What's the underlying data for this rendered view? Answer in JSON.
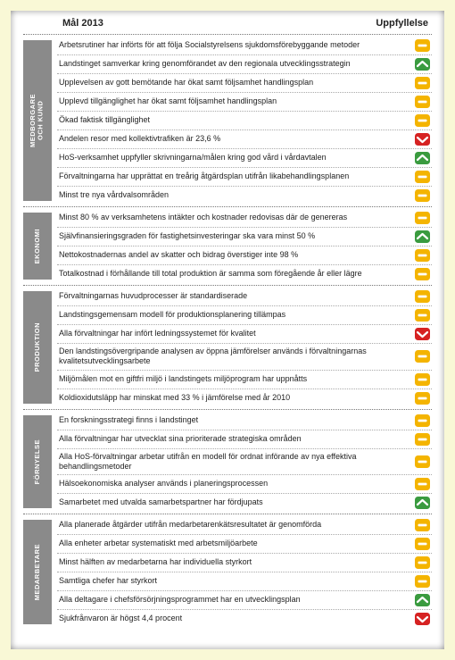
{
  "header": {
    "left": "Mål 2013",
    "right": "Uppfyllelse"
  },
  "badge_colors": {
    "green": "#3a9b3f",
    "yellow": "#f4b400",
    "red": "#d62222",
    "glyph": "#ffffff"
  },
  "sections": [
    {
      "label": "MEDBORGARE\nOCH KUND",
      "rows": [
        {
          "text": "Arbetsrutiner har införts för att följa Socialstyrelsens sjukdomsförebyggande metoder",
          "status": "yellow"
        },
        {
          "text": "Landstinget samverkar kring genomförandet av den regionala utvecklingsstrategin",
          "status": "green"
        },
        {
          "text": "Upplevelsen av gott bemötande har ökat samt följsamhet handlingsplan",
          "status": "yellow"
        },
        {
          "text": "Upplevd tillgänglighet har ökat samt följsamhet handlingsplan",
          "status": "yellow"
        },
        {
          "text": "Ökad faktisk tillgänglighet",
          "status": "yellow"
        },
        {
          "text": "Andelen resor med kollektivtrafiken är 23,6 %",
          "status": "red"
        },
        {
          "text": "HoS-verksamhet uppfyller skrivningarna/målen kring god vård i vårdavtalen",
          "status": "green"
        },
        {
          "text": "Förvaltningarna har upprättat en treårig åtgärdsplan utifrån likabehandlingsplanen",
          "status": "yellow"
        },
        {
          "text": "Minst tre nya vårdvalsområden",
          "status": "yellow"
        }
      ]
    },
    {
      "label": "EKONOMI",
      "rows": [
        {
          "text": "Minst 80 % av verksamhetens intäkter och kostnader redovisas där de genereras",
          "status": "yellow"
        },
        {
          "text": "Självfinansieringsgraden för fastighetsinvesteringar ska vara minst 50 %",
          "status": "green"
        },
        {
          "text": "Nettokostnadernas andel av skatter och bidrag överstiger inte 98 %",
          "status": "yellow"
        },
        {
          "text": "Totalkostnad i förhållande till total produktion är samma som föregående år eller lägre",
          "status": "yellow"
        }
      ]
    },
    {
      "label": "PRODUKTION",
      "rows": [
        {
          "text": "Förvaltningarnas huvudprocesser är standardiserade",
          "status": "yellow"
        },
        {
          "text": "Landstingsgemensam modell för produktionsplanering tillämpas",
          "status": "yellow"
        },
        {
          "text": "Alla förvaltningar har infört ledningssystemet för kvalitet",
          "status": "red"
        },
        {
          "text": "Den landstingsövergripande analysen av öppna jämförelser används i förvaltningarnas kvalitetsutvecklingsarbete",
          "status": "yellow"
        },
        {
          "text": "Miljömålen mot en giftfri miljö i landstingets miljöprogram har uppnåtts",
          "status": "yellow"
        },
        {
          "text": "Koldioxidutsläpp har minskat med 33 % i jämförelse med år 2010",
          "status": "yellow"
        }
      ]
    },
    {
      "label": "FÖRNYELSE",
      "rows": [
        {
          "text": "En forskningsstrategi finns i landstinget",
          "status": "yellow"
        },
        {
          "text": "Alla förvaltningar har utvecklat sina prioriterade strategiska områden",
          "status": "yellow"
        },
        {
          "text": "Alla HoS-förvaltningar arbetar utifrån en modell för ordnat införande av nya effektiva behandlingsmetoder",
          "status": "yellow"
        },
        {
          "text": "Hälsoekonomiska analyser används i planeringsprocessen",
          "status": "yellow"
        },
        {
          "text": "Samarbetet med utvalda samarbetspartner har fördjupats",
          "status": "green"
        }
      ]
    },
    {
      "label": "MEDARBETARE",
      "rows": [
        {
          "text": "Alla planerade åtgärder utifrån medarbetarenkätsresultatet är genomförda",
          "status": "yellow"
        },
        {
          "text": "Alla enheter arbetar systematiskt med arbetsmiljöarbete",
          "status": "yellow"
        },
        {
          "text": "Minst hälften av medarbetarna har individuella styrkort",
          "status": "yellow"
        },
        {
          "text": "Samtliga chefer har styrkort",
          "status": "yellow"
        },
        {
          "text": "Alla deltagare i chefsförsörjningsprogrammet har en utvecklingsplan",
          "status": "green"
        },
        {
          "text": "Sjukfrånvaron är högst 4,4 procent",
          "status": "red"
        }
      ]
    }
  ]
}
